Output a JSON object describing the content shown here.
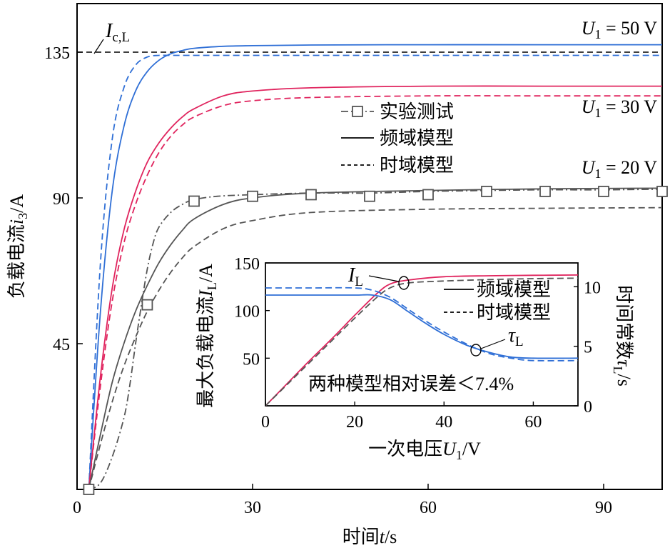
{
  "chart_data": [
    {
      "id": "main",
      "type": "line",
      "title": "",
      "xlabel": "时间t/s",
      "xlabel_parts": [
        "时间",
        "t",
        "/s"
      ],
      "ylabel": "负载电流i3/A",
      "ylabel_parts": [
        "负载电流",
        "i",
        "3",
        "/A"
      ],
      "xlim": [
        0,
        100
      ],
      "ylim": [
        0,
        150
      ],
      "xticks": [
        0,
        30,
        60,
        90
      ],
      "yticks": [
        45,
        90,
        135
      ],
      "grid": false,
      "legend_placement": "center-right",
      "legend": [
        {
          "style": "dashdot-square",
          "label": "实验测试"
        },
        {
          "style": "solid",
          "label": "频域模型"
        },
        {
          "style": "dashed",
          "label": "时域模型"
        }
      ],
      "threshold": {
        "y": 135,
        "label_main": "I",
        "label_sub": "c,L"
      },
      "voltage_labels": [
        {
          "text": "U",
          "sub": "1",
          "rest": " = 50 V",
          "y": 143
        },
        {
          "text": "U",
          "sub": "1",
          "rest": " = 30 V",
          "y": 117
        },
        {
          "text": "U",
          "sub": "1",
          "rest": " = 20 V",
          "y": 97
        }
      ],
      "series": [
        {
          "group": "50V",
          "model": "频域模型",
          "style": "solid",
          "color": "#2f6fd6",
          "x": [
            2,
            4,
            6,
            8,
            10,
            12,
            14,
            16,
            18,
            20,
            25,
            30,
            40,
            60,
            80,
            100
          ],
          "y": [
            0,
            55,
            92,
            112,
            123,
            129,
            132.5,
            134.5,
            135.5,
            136.2,
            136.8,
            137,
            137.2,
            137.3,
            137.3,
            137.3
          ]
        },
        {
          "group": "50V",
          "model": "时域模型",
          "style": "dashed",
          "color": "#2f6fd6",
          "x": [
            2,
            4,
            6,
            8,
            10,
            12,
            14,
            16,
            20,
            30,
            60,
            100
          ],
          "y": [
            0,
            70,
            108,
            124,
            131,
            133.5,
            134,
            134,
            134,
            134,
            134,
            134
          ]
        },
        {
          "group": "30V",
          "model": "频域模型",
          "style": "solid",
          "color": "#e0245e",
          "x": [
            2,
            4,
            6,
            8,
            10,
            12,
            14,
            16,
            18,
            20,
            25,
            30,
            40,
            60,
            80,
            100
          ],
          "y": [
            0,
            35,
            62,
            80,
            92,
            101,
            107,
            111.5,
            115,
            117.5,
            121.5,
            123,
            124,
            124.5,
            124.5,
            124.5
          ]
        },
        {
          "group": "30V",
          "model": "时域模型",
          "style": "dashed",
          "color": "#e0245e",
          "x": [
            2,
            4,
            6,
            8,
            10,
            12,
            14,
            16,
            18,
            20,
            25,
            30,
            40,
            60,
            80,
            100
          ],
          "y": [
            0,
            32,
            58,
            76,
            88,
            97,
            104,
            109,
            112.5,
            115,
            118.5,
            120,
            121,
            121.5,
            121.5,
            121.5
          ]
        },
        {
          "group": "20V",
          "model": "频域模型",
          "style": "solid",
          "color": "#555555",
          "x": [
            2,
            4,
            6,
            8,
            10,
            12,
            14,
            16,
            18,
            20,
            25,
            30,
            40,
            60,
            80,
            100
          ],
          "y": [
            0,
            17,
            33,
            45,
            55,
            63,
            70,
            75.5,
            80,
            83.5,
            88,
            90,
            91.5,
            92.3,
            92.8,
            93
          ]
        },
        {
          "group": "20V",
          "model": "时域模型",
          "style": "dashed",
          "color": "#555555",
          "x": [
            2,
            4,
            6,
            8,
            10,
            12,
            14,
            16,
            18,
            20,
            25,
            30,
            40,
            60,
            80,
            100
          ],
          "y": [
            0,
            14,
            27,
            38,
            47,
            55,
            61.5,
            67,
            71.5,
            75,
            80.5,
            83,
            85.5,
            86.5,
            86.8,
            87
          ]
        },
        {
          "group": "20V",
          "model": "实验测试",
          "style": "dashdot",
          "color": "#555555",
          "x": [
            2,
            4,
            6,
            8,
            9,
            10,
            11,
            12,
            13,
            14,
            16,
            18,
            20,
            24,
            30,
            40,
            50,
            60,
            70,
            80,
            90,
            100
          ],
          "y": [
            0,
            2,
            10,
            22,
            32,
            45,
            57,
            68,
            76,
            81,
            85.5,
            88,
            89.5,
            90.5,
            91,
            91.5,
            91.5,
            92,
            92.3,
            92.5,
            92.5,
            92.7
          ]
        }
      ],
      "markers": {
        "series_label": "实验测试",
        "x": [
          2,
          12,
          20,
          30,
          40,
          50,
          60,
          70,
          80,
          90,
          100
        ],
        "y": [
          0,
          57,
          89,
          90.5,
          91,
          90.5,
          91,
          92,
          92,
          92,
          92
        ]
      }
    },
    {
      "id": "inset",
      "type": "line",
      "title": "",
      "xlabel": "一次电压U1/V",
      "xlabel_parts": [
        "一次电压",
        "U",
        "1",
        "/V"
      ],
      "ylabel_left": "最大负载电流IL/A",
      "ylabel_left_parts": [
        "最大负载电流",
        "I",
        "L",
        "/A"
      ],
      "ylabel_right": "时间常数τL/s",
      "ylabel_right_parts": [
        "时间常数",
        "τ",
        "L",
        "/s"
      ],
      "xlim": [
        0,
        70
      ],
      "ylim_left": [
        0,
        150
      ],
      "ylim_right": [
        0,
        12
      ],
      "xticks": [
        0,
        20,
        40,
        60
      ],
      "yticks_left": [
        50,
        100,
        150
      ],
      "yticks_right": [
        0,
        5,
        10
      ],
      "grid": false,
      "legend_placement": "upper-right",
      "legend": [
        {
          "style": "solid",
          "label": "频域模型"
        },
        {
          "style": "dashed",
          "label": "时域模型"
        }
      ],
      "annotation": "两种模型相对误差＜7.4%",
      "callouts": [
        {
          "main": "I",
          "sub": "L"
        },
        {
          "main": "τ",
          "sub": "L"
        }
      ],
      "series": [
        {
          "name": "IL",
          "model": "频域模型",
          "axis": "left",
          "style": "solid",
          "color": "#e0245e",
          "x": [
            0,
            5,
            10,
            15,
            20,
            25,
            28,
            32,
            40,
            50,
            60,
            70
          ],
          "y": [
            0,
            24,
            48,
            71,
            95,
            118,
            128,
            132,
            135.5,
            136.5,
            137,
            137.3
          ]
        },
        {
          "name": "IL",
          "model": "时域模型",
          "axis": "left",
          "style": "dashed",
          "color": "#555555",
          "x": [
            0,
            5,
            10,
            15,
            20,
            25,
            28,
            32,
            40,
            50,
            60,
            70
          ],
          "y": [
            0,
            23,
            46,
            69,
            92,
            114,
            124,
            129,
            131,
            132.5,
            133.5,
            134
          ]
        },
        {
          "name": "τL",
          "model": "频域模型",
          "axis": "right",
          "style": "solid",
          "color": "#2f6fd6",
          "x": [
            0,
            10,
            20,
            24,
            28,
            32,
            36,
            40,
            45,
            50,
            55,
            60,
            70
          ],
          "y": [
            9.3,
            9.3,
            9.3,
            9.3,
            8.9,
            7.9,
            6.9,
            6.0,
            5.1,
            4.5,
            4.1,
            4.0,
            4.0
          ]
        },
        {
          "name": "τL",
          "model": "时域模型",
          "axis": "right",
          "style": "dashed",
          "color": "#2f6fd6",
          "x": [
            0,
            10,
            20,
            24,
            28,
            32,
            36,
            40,
            45,
            50,
            55,
            60,
            70
          ],
          "y": [
            9.9,
            9.9,
            9.9,
            9.7,
            9.1,
            8.1,
            7.1,
            6.2,
            5.2,
            4.4,
            4.0,
            3.8,
            3.8
          ]
        }
      ]
    }
  ]
}
